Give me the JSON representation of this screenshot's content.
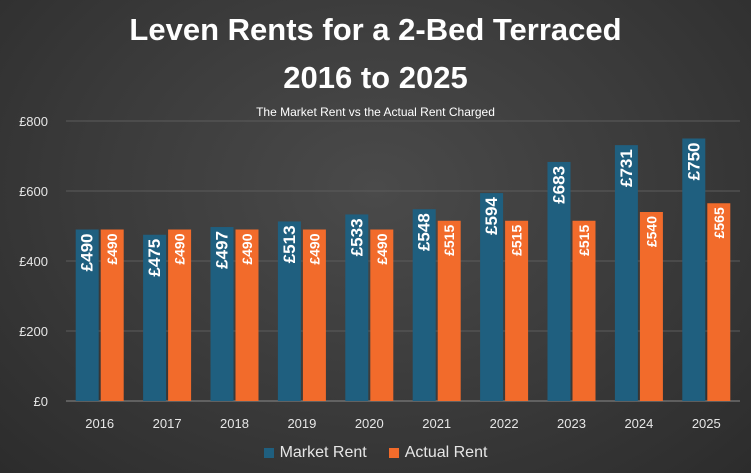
{
  "chart_data": {
    "type": "bar",
    "title_line1": "Leven Rents for a 2-Bed Terraced",
    "title_line2": "2016 to 2025",
    "subtitle": "The Market Rent vs the Actual Rent Charged",
    "categories": [
      "2016",
      "2017",
      "2018",
      "2019",
      "2020",
      "2021",
      "2022",
      "2023",
      "2024",
      "2025"
    ],
    "series": [
      {
        "name": "Market Rent",
        "color": "#1f5f7f",
        "values": [
          490,
          475,
          497,
          513,
          533,
          548,
          594,
          683,
          731,
          750
        ],
        "labels": [
          "£490",
          "£475",
          "£497",
          "£513",
          "£533",
          "£548",
          "£594",
          "£683",
          "£731",
          "£750"
        ]
      },
      {
        "name": "Actual Rent",
        "color": "#f26b2b",
        "values": [
          490,
          490,
          490,
          490,
          490,
          515,
          515,
          515,
          540,
          565
        ],
        "labels": [
          "£490",
          "£490",
          "£490",
          "£490",
          "£490",
          "£515",
          "£515",
          "£515",
          "£540",
          "£565"
        ]
      }
    ],
    "ylim": [
      0,
      800
    ],
    "yticks": [
      0,
      200,
      400,
      600,
      800
    ],
    "ytick_labels": [
      "£0",
      "£200",
      "£400",
      "£600",
      "£800"
    ],
    "grid": true,
    "legend": "bottom"
  }
}
